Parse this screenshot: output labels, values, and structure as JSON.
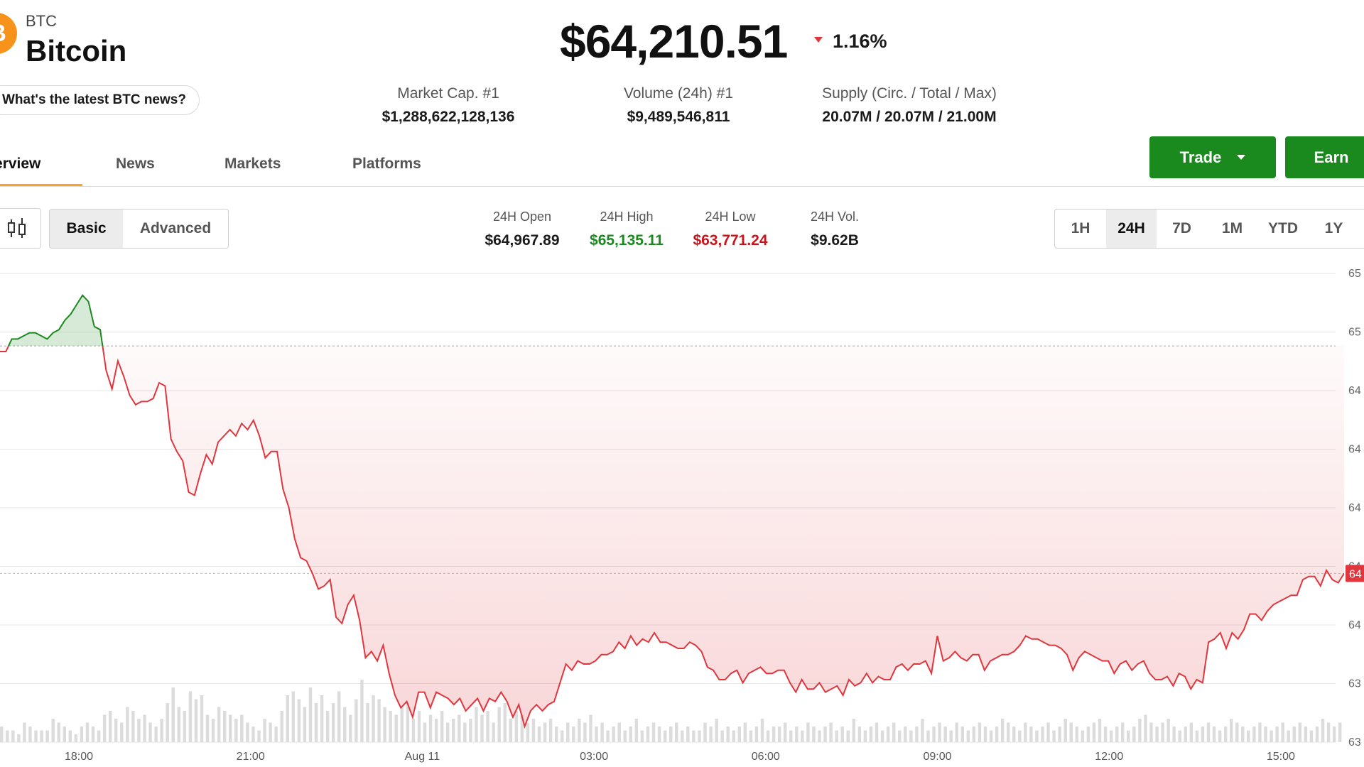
{
  "coin": {
    "logo_glyph": "₿",
    "ticker": "BTC",
    "name": "Bitcoin",
    "news_prompt": "What's the latest BTC news?"
  },
  "price": {
    "value": "$64,210.51",
    "change": "1.16%",
    "direction": "down"
  },
  "stats": [
    {
      "label": "Market Cap. #1",
      "value": "$1,288,622,128,136"
    },
    {
      "label": "Volume (24h) #1",
      "value": "$9,489,546,811"
    },
    {
      "label": "Supply (Circ. / Total / Max)",
      "value": "20.07M / 20.07M / 21.00M"
    }
  ],
  "tabs": [
    {
      "label": "Overview",
      "active": true
    },
    {
      "label": "News",
      "active": false
    },
    {
      "label": "Markets",
      "active": false
    },
    {
      "label": "Platforms",
      "active": false
    }
  ],
  "actions": {
    "trade": "Trade",
    "earn": "Earn"
  },
  "view_modes": [
    {
      "label": "Basic",
      "active": true
    },
    {
      "label": "Advanced",
      "active": false
    }
  ],
  "summary": [
    {
      "label": "24H Open",
      "value": "$64,967.89",
      "tone": "neutral"
    },
    {
      "label": "24H High",
      "value": "$65,135.11",
      "tone": "green"
    },
    {
      "label": "24H Low",
      "value": "$63,771.24",
      "tone": "red"
    },
    {
      "label": "24H Vol.",
      "value": "$9.62B",
      "tone": "neutral"
    }
  ],
  "ranges": [
    {
      "label": "1H",
      "active": false
    },
    {
      "label": "24H",
      "active": true
    },
    {
      "label": "7D",
      "active": false
    },
    {
      "label": "1M",
      "active": false
    },
    {
      "label": "YTD",
      "active": false
    },
    {
      "label": "1Y",
      "active": false
    }
  ],
  "colors": {
    "up": "#1a8a1f",
    "down": "#e0363d",
    "brand": "#f7931a"
  },
  "chart_data": {
    "type": "area",
    "x_tick_labels": [
      "18:00",
      "21:00",
      "Aug 11",
      "03:00",
      "06:00",
      "09:00",
      "12:00",
      "15:00"
    ],
    "y_tick_labels": [
      "65",
      "65",
      "64",
      "64",
      "64",
      "64",
      "64",
      "63",
      "63"
    ],
    "current_price_tag": "64",
    "baseline": 64967.89,
    "ylim": [
      63700,
      65200
    ],
    "series": [
      {
        "values": [
          64950,
          64950,
          64990,
          64990,
          65000,
          65010,
          65010,
          65000,
          64990,
          65010,
          65020,
          65050,
          65070,
          65100,
          65130,
          65110,
          65030,
          65020,
          64890,
          64830,
          64920,
          64870,
          64810,
          64780,
          64790,
          64790,
          64800,
          64850,
          64840,
          64670,
          64630,
          64600,
          64500,
          64490,
          64560,
          64620,
          64590,
          64660,
          64680,
          64700,
          64680,
          64720,
          64700,
          64730,
          64680,
          64610,
          64630,
          64630,
          64510,
          64450,
          64350,
          64290,
          64280,
          64240,
          64190,
          64200,
          64220,
          64100,
          64080,
          64140,
          64170,
          64090,
          63970,
          63990,
          63960,
          64010,
          63920,
          63850,
          63810,
          63830,
          63780,
          63860,
          63860,
          63810,
          63860,
          63850,
          63840,
          63820,
          63840,
          63800,
          63820,
          63840,
          63800,
          63840,
          63830,
          63860,
          63830,
          63780,
          63820,
          63750,
          63800,
          63820,
          63800,
          63820,
          63830,
          63890,
          63950,
          63930,
          63960,
          63950,
          63950,
          63960,
          63980,
          63980,
          63990,
          64020,
          64000,
          64040,
          64010,
          64030,
          64020,
          64050,
          64020,
          64020,
          64010,
          64000,
          64000,
          64020,
          64010,
          63990,
          63940,
          63930,
          63900,
          63900,
          63920,
          63930,
          63890,
          63920,
          63930,
          63940,
          63920,
          63920,
          63930,
          63930,
          63890,
          63860,
          63900,
          63870,
          63870,
          63890,
          63860,
          63870,
          63880,
          63850,
          63900,
          63880,
          63890,
          63920,
          63890,
          63910,
          63900,
          63900,
          63940,
          63950,
          63930,
          63950,
          63950,
          63960,
          63920,
          64040,
          63960,
          63970,
          63990,
          63970,
          63960,
          63980,
          63980,
          63930,
          63960,
          63970,
          63980,
          63980,
          63990,
          64010,
          64040,
          64030,
          64030,
          64020,
          64010,
          64010,
          64000,
          63980,
          63930,
          63970,
          63990,
          63980,
          63970,
          63960,
          63960,
          63920,
          63950,
          63960,
          63930,
          63950,
          63960,
          63920,
          63900,
          63900,
          63910,
          63880,
          63920,
          63910,
          63870,
          63900,
          63890,
          64020,
          64030,
          64050,
          64000,
          64050,
          64030,
          64060,
          64110,
          64110,
          64090,
          64120,
          64140,
          64150,
          64160,
          64170,
          64170,
          64220,
          64230,
          64230,
          64200,
          64250,
          64220,
          64210,
          64240
        ]
      }
    ],
    "volume": [
      4,
      3,
      3,
      2,
      5,
      4,
      3,
      3,
      3,
      6,
      5,
      4,
      3,
      2,
      4,
      5,
      4,
      3,
      7,
      8,
      6,
      5,
      9,
      8,
      6,
      7,
      5,
      4,
      6,
      10,
      14,
      9,
      8,
      13,
      11,
      12,
      7,
      6,
      9,
      8,
      7,
      6,
      7,
      5,
      4,
      3,
      6,
      5,
      4,
      8,
      12,
      13,
      11,
      9,
      14,
      10,
      12,
      8,
      10,
      13,
      9,
      7,
      11,
      16,
      10,
      12,
      11,
      9,
      8,
      7,
      9,
      10,
      6,
      8,
      5,
      7,
      6,
      8,
      5,
      6,
      7,
      5,
      6,
      9,
      7,
      8,
      5,
      9,
      10,
      6,
      8,
      7,
      5,
      6,
      4,
      5,
      6,
      4,
      3,
      5,
      4,
      6,
      5,
      7,
      4,
      5,
      3,
      4,
      5,
      3,
      4,
      6,
      3,
      4,
      5,
      4,
      3,
      4,
      5,
      3,
      4,
      3,
      3,
      5,
      4,
      6,
      3,
      4,
      3,
      4,
      5,
      3,
      4,
      6,
      3,
      4,
      4,
      5,
      3,
      4,
      3,
      5,
      4,
      3,
      4,
      5,
      3,
      4,
      3,
      6,
      4,
      3,
      4,
      5,
      3,
      4,
      5,
      3,
      4,
      3,
      4,
      6,
      3,
      4,
      5,
      4,
      3,
      5,
      4,
      3,
      4,
      5,
      4,
      3,
      4,
      6,
      5,
      4,
      3,
      5,
      4,
      3,
      4,
      5,
      3,
      4,
      6,
      5,
      4,
      3,
      4,
      5,
      6,
      4,
      3,
      4,
      5,
      3,
      4,
      6,
      7,
      5,
      4,
      5,
      6,
      4,
      3,
      4,
      5,
      3,
      4,
      5,
      4,
      3,
      4,
      6,
      5,
      4,
      3,
      4,
      5,
      4,
      3,
      4,
      5,
      3,
      4,
      5,
      4,
      3,
      4,
      6,
      5,
      4,
      5
    ]
  }
}
